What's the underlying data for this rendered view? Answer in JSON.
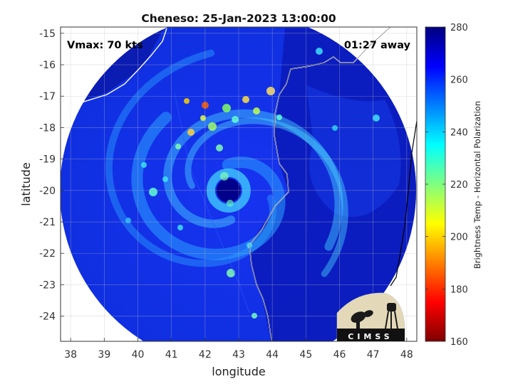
{
  "chart_data": {
    "type": "heatmap",
    "title": "Cheneso: 25-Jan-2023 13:00:00",
    "xlabel": "longitude",
    "ylabel": "latitude",
    "xlim": [
      37.7,
      48.3
    ],
    "ylim": [
      -24.8,
      -14.8
    ],
    "x_ticks": [
      38,
      39,
      40,
      41,
      42,
      43,
      44,
      45,
      46,
      47,
      48
    ],
    "y_ticks": [
      -15,
      -16,
      -17,
      -18,
      -19,
      -20,
      -21,
      -22,
      -23,
      -24
    ],
    "grid": true,
    "storm_center": {
      "lon": 42.7,
      "lat": -20.0
    },
    "colorbar": {
      "label": "Brightness Temp - Horizontal Polarization",
      "min": 160,
      "max": 280,
      "ticks": [
        160,
        180,
        200,
        220,
        240,
        260,
        280
      ],
      "colors": [
        "#7f0000",
        "#ff0000",
        "#ff8000",
        "#ffff00",
        "#80ff80",
        "#00ffff",
        "#0080ff",
        "#0000ff",
        "#00007f"
      ]
    },
    "annotations": {
      "vmax": "Vmax: 70 kts",
      "time_away": "01:27 away"
    },
    "logo_text": "CIMSS"
  }
}
